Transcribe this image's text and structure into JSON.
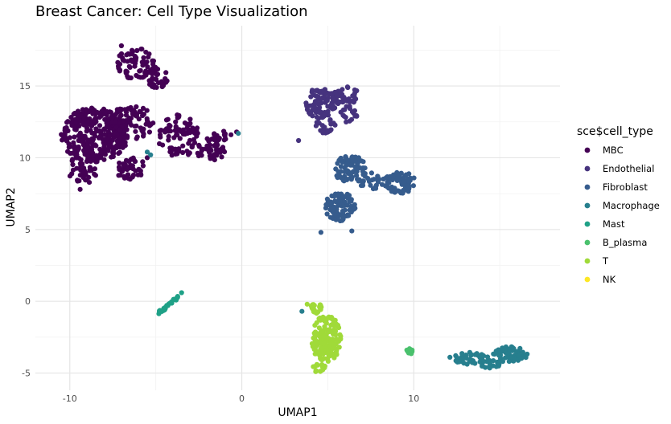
{
  "chart_data": {
    "type": "scatter",
    "title": "Breast Cancer: Cell Type  Visualization",
    "xlabel": "UMAP1",
    "ylabel": "UMAP2",
    "xlim": [
      -12,
      18.5
    ],
    "ylim": [
      -6.2,
      19.2
    ],
    "x_ticks": [
      -10,
      0,
      10
    ],
    "y_ticks": [
      -5,
      0,
      5,
      10,
      15
    ],
    "grid": true,
    "legend": {
      "title": "sce$cell_type",
      "placement": "right",
      "entries": [
        "MBC",
        "Endothelial",
        "Fibroblast",
        "Macrophage",
        "Mast",
        "B_plasma",
        "T",
        "NK"
      ]
    },
    "colors": {
      "MBC": "#440154",
      "Endothelial": "#46337E",
      "Fibroblast": "#365C8D",
      "Macrophage": "#277F8E",
      "Mast": "#1FA187",
      "B_plasma": "#4AC16D",
      "T": "#A0DA39",
      "NK": "#FDE725"
    },
    "series": [
      {
        "name": "MBC",
        "clusters": [
          {
            "cx": -8.6,
            "cy": 11.6,
            "rx": 2.0,
            "ry": 1.9,
            "n": 330
          },
          {
            "cx": -9.2,
            "cy": 9.2,
            "rx": 1.0,
            "ry": 1.0,
            "n": 45
          },
          {
            "cx": -6.4,
            "cy": 12.4,
            "rx": 1.4,
            "ry": 1.2,
            "n": 90
          },
          {
            "cx": -6.5,
            "cy": 9.3,
            "rx": 0.9,
            "ry": 0.8,
            "n": 45
          },
          {
            "cx": -6.2,
            "cy": 16.6,
            "rx": 1.1,
            "ry": 1.1,
            "n": 70
          },
          {
            "cx": -4.9,
            "cy": 15.6,
            "rx": 0.6,
            "ry": 0.8,
            "n": 30
          },
          {
            "cx": -3.7,
            "cy": 11.5,
            "rx": 1.2,
            "ry": 1.5,
            "n": 80
          },
          {
            "cx": -1.8,
            "cy": 10.6,
            "rx": 0.9,
            "ry": 0.8,
            "n": 45
          },
          {
            "cx": -1.2,
            "cy": 11.5,
            "rx": 0.6,
            "ry": 0.4,
            "n": 15
          }
        ],
        "points": [
          [
            -7.0,
            17.8
          ],
          [
            -0.3,
            11.8
          ],
          [
            -5.5,
            10.0
          ],
          [
            -9.4,
            7.8
          ]
        ]
      },
      {
        "name": "Endothelial",
        "clusters": [
          {
            "cx": 4.6,
            "cy": 13.8,
            "rx": 0.9,
            "ry": 1.1,
            "n": 80
          },
          {
            "cx": 6.0,
            "cy": 14.3,
            "rx": 0.8,
            "ry": 0.7,
            "n": 45
          },
          {
            "cx": 4.9,
            "cy": 12.4,
            "rx": 0.6,
            "ry": 0.7,
            "n": 25
          },
          {
            "cx": 6.2,
            "cy": 13.0,
            "rx": 0.5,
            "ry": 0.6,
            "n": 18
          }
        ],
        "points": [
          [
            3.3,
            11.2
          ],
          [
            5.0,
            11.9
          ]
        ]
      },
      {
        "name": "Fibroblast",
        "clusters": [
          {
            "cx": 5.7,
            "cy": 6.6,
            "rx": 0.9,
            "ry": 1.0,
            "n": 90
          },
          {
            "cx": 6.3,
            "cy": 9.2,
            "rx": 0.9,
            "ry": 1.0,
            "n": 70
          },
          {
            "cx": 9.2,
            "cy": 8.3,
            "rx": 0.9,
            "ry": 0.8,
            "n": 70
          },
          {
            "cx": 7.5,
            "cy": 8.4,
            "rx": 0.8,
            "ry": 0.6,
            "n": 25
          }
        ],
        "points": [
          [
            4.6,
            4.8
          ],
          [
            6.4,
            4.9
          ]
        ]
      },
      {
        "name": "Macrophage",
        "clusters": [
          {
            "cx": 15.6,
            "cy": -3.7,
            "rx": 1.0,
            "ry": 0.55,
            "n": 70
          },
          {
            "cx": 13.4,
            "cy": -4.0,
            "rx": 1.1,
            "ry": 0.45,
            "n": 45
          },
          {
            "cx": 14.5,
            "cy": -4.4,
            "rx": 0.6,
            "ry": 0.3,
            "n": 15
          }
        ],
        "points": [
          [
            -0.2,
            11.7
          ],
          [
            3.5,
            -0.7
          ],
          [
            -5.5,
            10.4
          ],
          [
            -5.3,
            10.2
          ],
          [
            12.1,
            -3.9
          ]
        ]
      },
      {
        "name": "Mast",
        "line": {
          "from": [
            -4.8,
            -0.8
          ],
          "to": [
            -3.7,
            0.3
          ],
          "n": 22
        },
        "points": [
          [
            -3.5,
            0.6
          ]
        ]
      },
      {
        "name": "B_plasma",
        "points": [
          [
            9.6,
            -3.4
          ],
          [
            9.8,
            -3.35
          ],
          [
            9.9,
            -3.5
          ],
          [
            9.7,
            -3.6
          ],
          [
            9.85,
            -3.65
          ],
          [
            9.65,
            -3.5
          ],
          [
            9.75,
            -3.3
          ],
          [
            9.9,
            -3.4
          ]
        ]
      },
      {
        "name": "T",
        "clusters": [
          {
            "cx": 4.9,
            "cy": -2.6,
            "rx": 0.9,
            "ry": 1.6,
            "n": 160
          },
          {
            "cx": 4.3,
            "cy": -0.5,
            "rx": 0.4,
            "ry": 0.35,
            "n": 18
          },
          {
            "cx": 4.5,
            "cy": -4.6,
            "rx": 0.35,
            "ry": 0.3,
            "n": 12
          }
        ],
        "points": [
          [
            3.8,
            -0.2
          ],
          [
            4.3,
            -4.9
          ]
        ]
      },
      {
        "name": "NK",
        "points": []
      }
    ]
  }
}
